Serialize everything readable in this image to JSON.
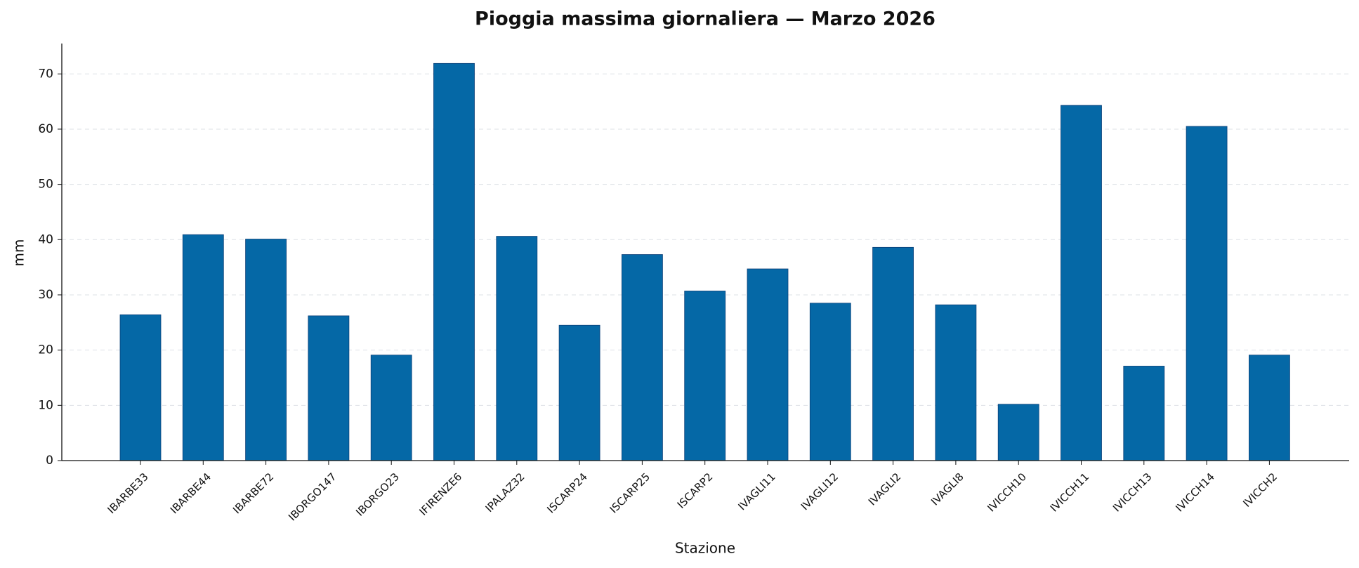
{
  "chart_data": {
    "type": "bar",
    "title": "Pioggia massima giornaliera — Marzo 2026",
    "x_label": "Stazione",
    "y_label": "mm",
    "categories": [
      "IBARBE33",
      "IBARBE44",
      "IBARBE72",
      "IBORGO147",
      "IBORGO23",
      "IFIRENZE6",
      "IPALAZ32",
      "ISCARP24",
      "ISCARP25",
      "ISCARP2",
      "IVAGLI11",
      "IVAGLI12",
      "IVAGLI2",
      "IVAGLI8",
      "IVICCH10",
      "IVICCH11",
      "IVICCH13",
      "IVICCH14",
      "IVICCH2"
    ],
    "values": [
      26.4,
      40.9,
      40.1,
      26.2,
      19.1,
      71.9,
      40.6,
      24.5,
      37.3,
      30.7,
      34.7,
      28.5,
      38.6,
      28.2,
      10.2,
      64.3,
      17.1,
      60.5,
      19.1
    ],
    "color": "#0568a6",
    "ylim": [
      0,
      75.5
    ],
    "yticks": [
      0,
      10,
      20,
      30,
      40,
      50,
      60,
      70
    ],
    "grid": true
  }
}
